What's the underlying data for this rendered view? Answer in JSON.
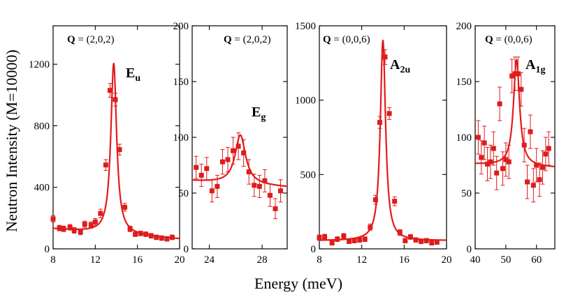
{
  "figure": {
    "ylabel": "Neutron Intensity (M=10000)",
    "xlabel": "Energy (meV)",
    "color": "#dd1c1c",
    "fit_color": "#e41a1c"
  },
  "chart_data": [
    {
      "type": "scatter",
      "q_bold": "Q",
      "q_value": " = (2,0,2)",
      "peak_main": "E",
      "peak_sub": "u",
      "xlim": [
        8,
        20
      ],
      "ylim": [
        0,
        1450
      ],
      "xticks": [
        8,
        12,
        16,
        20
      ],
      "xticklabels": [
        "8",
        "12",
        "16",
        "20"
      ],
      "yticks": [
        0,
        400,
        800,
        1200
      ],
      "yticklabels": [
        "0",
        "400",
        "800",
        "1200"
      ],
      "x": [
        8.0,
        8.6,
        9.0,
        9.6,
        10.0,
        10.6,
        11.0,
        11.6,
        12.0,
        12.5,
        13.0,
        13.4,
        13.9,
        14.3,
        14.8,
        15.3,
        15.8,
        16.3,
        16.8,
        17.3,
        17.8,
        18.3,
        18.8,
        19.3
      ],
      "y": [
        195,
        135,
        130,
        140,
        120,
        110,
        160,
        155,
        175,
        230,
        545,
        1030,
        970,
        645,
        270,
        130,
        95,
        100,
        95,
        85,
        75,
        70,
        65,
        75
      ],
      "err": [
        20,
        18,
        18,
        18,
        18,
        18,
        20,
        20,
        22,
        28,
        35,
        45,
        42,
        35,
        25,
        18,
        15,
        15,
        15,
        15,
        15,
        15,
        15,
        15
      ],
      "fit": {
        "x0": 13.75,
        "gamma": 0.33,
        "amp": 1110,
        "bg0": 130,
        "bg_slope": -5.5,
        "bg_ref": 8
      }
    },
    {
      "type": "scatter",
      "q_bold": "Q",
      "q_value": " = (2,0,2)",
      "peak_main": "E",
      "peak_sub": "g",
      "xlim": [
        22.7,
        29.9
      ],
      "ylim": [
        0,
        200
      ],
      "xticks": [
        24,
        28
      ],
      "xticklabels": [
        "24",
        "28"
      ],
      "yticks": [
        0,
        50,
        100,
        150,
        200
      ],
      "yticklabels": [
        "0",
        "50",
        "100",
        "150",
        "200"
      ],
      "x": [
        23.0,
        23.4,
        23.8,
        24.2,
        24.6,
        25.0,
        25.4,
        25.8,
        26.2,
        26.6,
        27.0,
        27.4,
        27.8,
        28.2,
        28.6,
        29.0,
        29.4
      ],
      "y": [
        73,
        66,
        72,
        52,
        56,
        78,
        80,
        88,
        92,
        86,
        69,
        57,
        56,
        61,
        48,
        36,
        52
      ],
      "err": [
        10,
        10,
        10,
        10,
        10,
        11,
        11,
        12,
        12,
        12,
        11,
        10,
        10,
        10,
        10,
        9,
        10
      ],
      "fit": {
        "x0": 26.35,
        "gamma": 0.48,
        "amp": 44,
        "bg0": 61,
        "bg_slope": -0.8,
        "bg_ref": 22.7
      }
    },
    {
      "type": "scatter",
      "q_bold": "Q",
      "q_value": " = (0,0,6)",
      "peak_main": "A",
      "peak_sub": "2u",
      "xlim": [
        8,
        20
      ],
      "ylim": [
        0,
        1500
      ],
      "xticks": [
        8,
        12,
        16,
        20
      ],
      "xticklabels": [
        "8",
        "12",
        "16",
        "20"
      ],
      "yticks": [
        0,
        500,
        1000,
        1500
      ],
      "yticklabels": [
        "0",
        "500",
        "1000",
        "1500"
      ],
      "x": [
        8.0,
        8.5,
        9.2,
        9.7,
        10.3,
        10.8,
        11.3,
        11.8,
        12.3,
        12.8,
        13.3,
        13.7,
        14.2,
        14.6,
        15.1,
        15.6,
        16.1,
        16.6,
        17.1,
        17.6,
        18.1,
        18.6,
        19.1
      ],
      "y": [
        75,
        80,
        40,
        65,
        85,
        50,
        55,
        60,
        65,
        145,
        330,
        850,
        1290,
        910,
        320,
        110,
        55,
        80,
        60,
        50,
        55,
        40,
        45
      ],
      "err": [
        18,
        18,
        15,
        16,
        18,
        15,
        15,
        16,
        16,
        22,
        30,
        40,
        50,
        40,
        30,
        20,
        15,
        16,
        15,
        15,
        15,
        15,
        15
      ],
      "fit": {
        "x0": 14.0,
        "gamma": 0.3,
        "amp": 1350,
        "bg0": 55,
        "bg_slope": 0,
        "bg_ref": 8
      }
    },
    {
      "type": "scatter",
      "q_bold": "Q",
      "q_value": " = (0,0,6)",
      "peak_main": "A",
      "peak_sub": "1g",
      "xlim": [
        40,
        66
      ],
      "ylim": [
        0,
        200
      ],
      "xticks": [
        40,
        50,
        60
      ],
      "xticklabels": [
        "40",
        "50",
        "60"
      ],
      "yticks": [
        0,
        50,
        100,
        150,
        200
      ],
      "yticklabels": [
        "0",
        "50",
        "100",
        "150",
        "200"
      ],
      "x": [
        41.0,
        42.0,
        43.0,
        44.0,
        45.0,
        46.0,
        47.0,
        48.0,
        49.0,
        50.0,
        51.0,
        52.0,
        53.0,
        54.0,
        55.0,
        56.0,
        57.0,
        58.0,
        59.0,
        60.0,
        61.0,
        62.0,
        63.0,
        64.0
      ],
      "y": [
        100,
        82,
        95,
        76,
        78,
        90,
        68,
        130,
        72,
        80,
        78,
        155,
        157,
        157,
        143,
        93,
        60,
        105,
        57,
        75,
        62,
        73,
        85,
        90
      ],
      "err": [
        15,
        15,
        15,
        15,
        15,
        15,
        15,
        15,
        15,
        15,
        15,
        15,
        15,
        15,
        15,
        15,
        15,
        15,
        15,
        15,
        15,
        15,
        15,
        15
      ],
      "fit": {
        "x0": 53.5,
        "gamma": 1.2,
        "amp": 95,
        "bg0": 76,
        "bg_slope": -0.12,
        "bg_ref": 40
      }
    }
  ]
}
